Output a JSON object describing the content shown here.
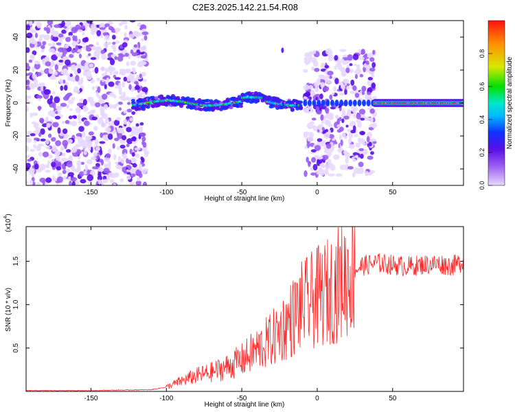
{
  "title": "C2E3.2025.142.21.54.R08",
  "chart_data": [
    {
      "type": "heatmap",
      "panel": "top",
      "xlabel": "Height of straight line (km)",
      "ylabel": "Frequency (Hz)",
      "xlim": [
        -193,
        97
      ],
      "ylim": [
        -50,
        50
      ],
      "xticks": [
        -150,
        -100,
        -50,
        0,
        50
      ],
      "yticks": [
        -40,
        -20,
        0,
        20,
        40
      ],
      "colorbar": {
        "label": "Normalized spectral amplitude",
        "range": [
          0,
          1
        ],
        "ticks": [
          "0.0",
          "0.2",
          "0.4",
          "0.6",
          "0.8"
        ],
        "colormap": [
          "#e8d8ff",
          "#9a5cf0",
          "#5a10e8",
          "#1030ff",
          "#00b8ff",
          "#00e8c8",
          "#00e000",
          "#d8e800",
          "#ff9000",
          "#ff1010"
        ]
      },
      "regions": [
        {
          "x_range": [
            -193,
            -113
          ],
          "f_range": [
            -50,
            50
          ],
          "level": "low",
          "note": "broadband noise"
        },
        {
          "x_range": [
            -122,
            -10
          ],
          "center_hz": [
            0,
            2,
            -1,
            1,
            0
          ],
          "level": "medium-high"
        },
        {
          "x_range": [
            -8,
            38
          ],
          "f_range": [
            -45,
            32
          ],
          "level": "low",
          "note": "broadband"
        },
        {
          "x_range": [
            38,
            97
          ],
          "center_hz": 0,
          "level": "high"
        }
      ]
    },
    {
      "type": "line",
      "panel": "bottom",
      "xlabel": "Height of straight line (km)",
      "ylabel": "SNR (10 * v/v)",
      "yscale_label": "(x10",
      "yscale_exp": "4",
      "xlim": [
        -193,
        97
      ],
      "ylim": [
        0,
        1.9
      ],
      "xticks": [
        -150,
        -100,
        -50,
        0,
        50
      ],
      "yticks": [
        "0.5",
        "1.0",
        "1.5"
      ],
      "series": [
        {
          "color": "#ff2020",
          "x": [
            -193,
            -150,
            -110,
            -100,
            -90,
            -80,
            -70,
            -60,
            -50,
            -40,
            -30,
            -20,
            -10,
            0,
            10,
            20,
            25,
            30,
            40,
            50,
            60,
            70,
            80,
            90,
            97
          ],
          "y": [
            0.01,
            0.01,
            0.02,
            0.05,
            0.12,
            0.18,
            0.22,
            0.28,
            0.36,
            0.48,
            0.6,
            0.78,
            0.98,
            1.08,
            1.18,
            1.33,
            1.4,
            1.45,
            1.48,
            1.46,
            1.44,
            1.46,
            1.47,
            1.45,
            1.5
          ]
        }
      ]
    }
  ]
}
